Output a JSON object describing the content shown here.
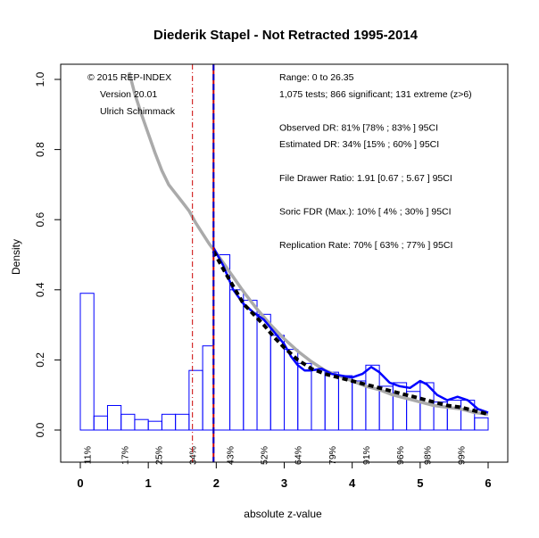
{
  "chart_data": {
    "type": "histogram",
    "title": "Diederik Stapel - Not Retracted  1995-2014",
    "xlabel": "absolute z-value",
    "ylabel": "Density",
    "xlim": [
      0,
      6
    ],
    "ylim": [
      0,
      1.0
    ],
    "x_ticks": [
      "0",
      "1",
      "2",
      "3",
      "4",
      "5",
      "6"
    ],
    "y_ticks": [
      "0.0",
      "0.2",
      "0.4",
      "0.6",
      "0.8",
      "1.0"
    ],
    "bins": [
      {
        "x0": 0.0,
        "x1": 0.2,
        "density": 0.39
      },
      {
        "x0": 0.2,
        "x1": 0.4,
        "density": 0.04
      },
      {
        "x0": 0.4,
        "x1": 0.6,
        "density": 0.07
      },
      {
        "x0": 0.6,
        "x1": 0.8,
        "density": 0.045
      },
      {
        "x0": 0.8,
        "x1": 1.0,
        "density": 0.03
      },
      {
        "x0": 1.0,
        "x1": 1.2,
        "density": 0.025
      },
      {
        "x0": 1.2,
        "x1": 1.4,
        "density": 0.045
      },
      {
        "x0": 1.4,
        "x1": 1.6,
        "density": 0.045
      },
      {
        "x0": 1.6,
        "x1": 1.8,
        "density": 0.17
      },
      {
        "x0": 1.8,
        "x1": 1.96,
        "density": 0.24
      },
      {
        "x0": 1.96,
        "x1": 2.2,
        "density": 0.5
      },
      {
        "x0": 2.2,
        "x1": 2.4,
        "density": 0.4
      },
      {
        "x0": 2.4,
        "x1": 2.6,
        "density": 0.37
      },
      {
        "x0": 2.6,
        "x1": 2.8,
        "density": 0.33
      },
      {
        "x0": 2.8,
        "x1": 3.0,
        "density": 0.27
      },
      {
        "x0": 3.0,
        "x1": 3.2,
        "density": 0.23
      },
      {
        "x0": 3.2,
        "x1": 3.4,
        "density": 0.19
      },
      {
        "x0": 3.4,
        "x1": 3.6,
        "density": 0.17
      },
      {
        "x0": 3.6,
        "x1": 3.8,
        "density": 0.165
      },
      {
        "x0": 3.8,
        "x1": 4.0,
        "density": 0.155
      },
      {
        "x0": 4.0,
        "x1": 4.2,
        "density": 0.14
      },
      {
        "x0": 4.2,
        "x1": 4.4,
        "density": 0.185
      },
      {
        "x0": 4.4,
        "x1": 4.6,
        "density": 0.125
      },
      {
        "x0": 4.6,
        "x1": 4.8,
        "density": 0.135
      },
      {
        "x0": 4.8,
        "x1": 5.0,
        "density": 0.11
      },
      {
        "x0": 5.0,
        "x1": 5.2,
        "density": 0.135
      },
      {
        "x0": 5.2,
        "x1": 5.4,
        "density": 0.08
      },
      {
        "x0": 5.4,
        "x1": 5.6,
        "density": 0.085
      },
      {
        "x0": 5.6,
        "x1": 5.8,
        "density": 0.085
      },
      {
        "x0": 5.8,
        "x1": 6.0,
        "density": 0.035
      }
    ],
    "percent_labels": [
      {
        "x": 0.1,
        "text": "11%"
      },
      {
        "x": 0.65,
        "text": "17%"
      },
      {
        "x": 1.15,
        "text": "25%"
      },
      {
        "x": 1.65,
        "text": "34%"
      },
      {
        "x": 2.2,
        "text": "43%"
      },
      {
        "x": 2.7,
        "text": "52%"
      },
      {
        "x": 3.2,
        "text": "64%"
      },
      {
        "x": 3.7,
        "text": "79%"
      },
      {
        "x": 4.2,
        "text": "91%"
      },
      {
        "x": 4.7,
        "text": "96%"
      },
      {
        "x": 5.1,
        "text": "98%"
      },
      {
        "x": 5.6,
        "text": "99%"
      }
    ],
    "vertical_lines": [
      {
        "x": 1.65,
        "color": "#cc0000",
        "style": "dashdot"
      },
      {
        "x": 1.96,
        "color": "#cc0000",
        "style": "solid"
      },
      {
        "x": 1.96,
        "color": "#0000cc",
        "style": "dashed"
      }
    ],
    "gray_curve": [
      [
        0.72,
        1.02
      ],
      [
        0.8,
        0.96
      ],
      [
        0.9,
        0.9
      ],
      [
        1.0,
        0.845
      ],
      [
        1.1,
        0.79
      ],
      [
        1.2,
        0.74
      ],
      [
        1.3,
        0.7
      ],
      [
        1.4,
        0.675
      ],
      [
        1.5,
        0.65
      ],
      [
        1.6,
        0.625
      ],
      [
        1.7,
        0.59
      ],
      [
        1.8,
        0.56
      ],
      [
        1.9,
        0.53
      ],
      [
        2.0,
        0.505
      ],
      [
        2.2,
        0.45
      ],
      [
        2.4,
        0.395
      ],
      [
        2.6,
        0.345
      ],
      [
        2.8,
        0.3
      ],
      [
        3.0,
        0.26
      ],
      [
        3.2,
        0.225
      ],
      [
        3.4,
        0.195
      ],
      [
        3.6,
        0.17
      ],
      [
        3.8,
        0.155
      ],
      [
        4.0,
        0.14
      ],
      [
        4.2,
        0.125
      ],
      [
        4.4,
        0.115
      ],
      [
        4.6,
        0.1
      ],
      [
        4.8,
        0.09
      ],
      [
        5.0,
        0.08
      ],
      [
        5.2,
        0.07
      ],
      [
        5.4,
        0.065
      ],
      [
        5.6,
        0.06
      ],
      [
        5.8,
        0.05
      ],
      [
        6.0,
        0.045
      ]
    ],
    "blue_curve": [
      [
        1.96,
        0.52
      ],
      [
        2.1,
        0.47
      ],
      [
        2.25,
        0.4
      ],
      [
        2.4,
        0.36
      ],
      [
        2.55,
        0.335
      ],
      [
        2.7,
        0.315
      ],
      [
        2.85,
        0.28
      ],
      [
        3.0,
        0.245
      ],
      [
        3.1,
        0.21
      ],
      [
        3.2,
        0.185
      ],
      [
        3.3,
        0.17
      ],
      [
        3.4,
        0.17
      ],
      [
        3.55,
        0.175
      ],
      [
        3.7,
        0.16
      ],
      [
        3.85,
        0.155
      ],
      [
        4.0,
        0.15
      ],
      [
        4.15,
        0.16
      ],
      [
        4.28,
        0.18
      ],
      [
        4.4,
        0.165
      ],
      [
        4.55,
        0.135
      ],
      [
        4.7,
        0.125
      ],
      [
        4.85,
        0.12
      ],
      [
        5.0,
        0.14
      ],
      [
        5.1,
        0.13
      ],
      [
        5.25,
        0.1
      ],
      [
        5.4,
        0.085
      ],
      [
        5.55,
        0.095
      ],
      [
        5.7,
        0.085
      ],
      [
        5.85,
        0.06
      ],
      [
        6.0,
        0.05
      ]
    ],
    "black_dashed_curve": [
      [
        1.96,
        0.51
      ],
      [
        2.1,
        0.46
      ],
      [
        2.25,
        0.41
      ],
      [
        2.4,
        0.36
      ],
      [
        2.55,
        0.33
      ],
      [
        2.7,
        0.3
      ],
      [
        2.85,
        0.265
      ],
      [
        3.0,
        0.235
      ],
      [
        3.2,
        0.2
      ],
      [
        3.4,
        0.175
      ],
      [
        3.6,
        0.16
      ],
      [
        3.8,
        0.15
      ],
      [
        4.0,
        0.14
      ],
      [
        4.2,
        0.13
      ],
      [
        4.4,
        0.12
      ],
      [
        4.6,
        0.11
      ],
      [
        4.8,
        0.1
      ],
      [
        5.0,
        0.09
      ],
      [
        5.2,
        0.08
      ],
      [
        5.4,
        0.07
      ],
      [
        5.6,
        0.065
      ],
      [
        5.8,
        0.055
      ],
      [
        6.0,
        0.045
      ]
    ],
    "colors": {
      "bars": "#0000ff",
      "gray_curve": "#aaaaaa",
      "blue_curve": "#0000ff",
      "black_curve": "#000000",
      "red_line": "#cc0000"
    }
  },
  "annotations_left": [
    "© 2015 REP-INDEX",
    "Version 20.01",
    "Ulrich Schimmack"
  ],
  "annotations_right": [
    "Range: 0 to 26.35",
    "1,075 tests; 866 significant; 131 extreme (z>6)",
    "",
    "Observed DR: 81% [78% ; 83% ] 95CI",
    "Estimated DR: 34% [15% ; 60% ] 95CI",
    "",
    "File Drawer Ratio: 1.91 [0.67 ; 5.67 ] 95CI",
    "",
    "Soric FDR (Max.): 10% [ 4% ; 30% ] 95CI",
    "",
    "Replication Rate: 70% [ 63% ; 77% ] 95CI"
  ]
}
